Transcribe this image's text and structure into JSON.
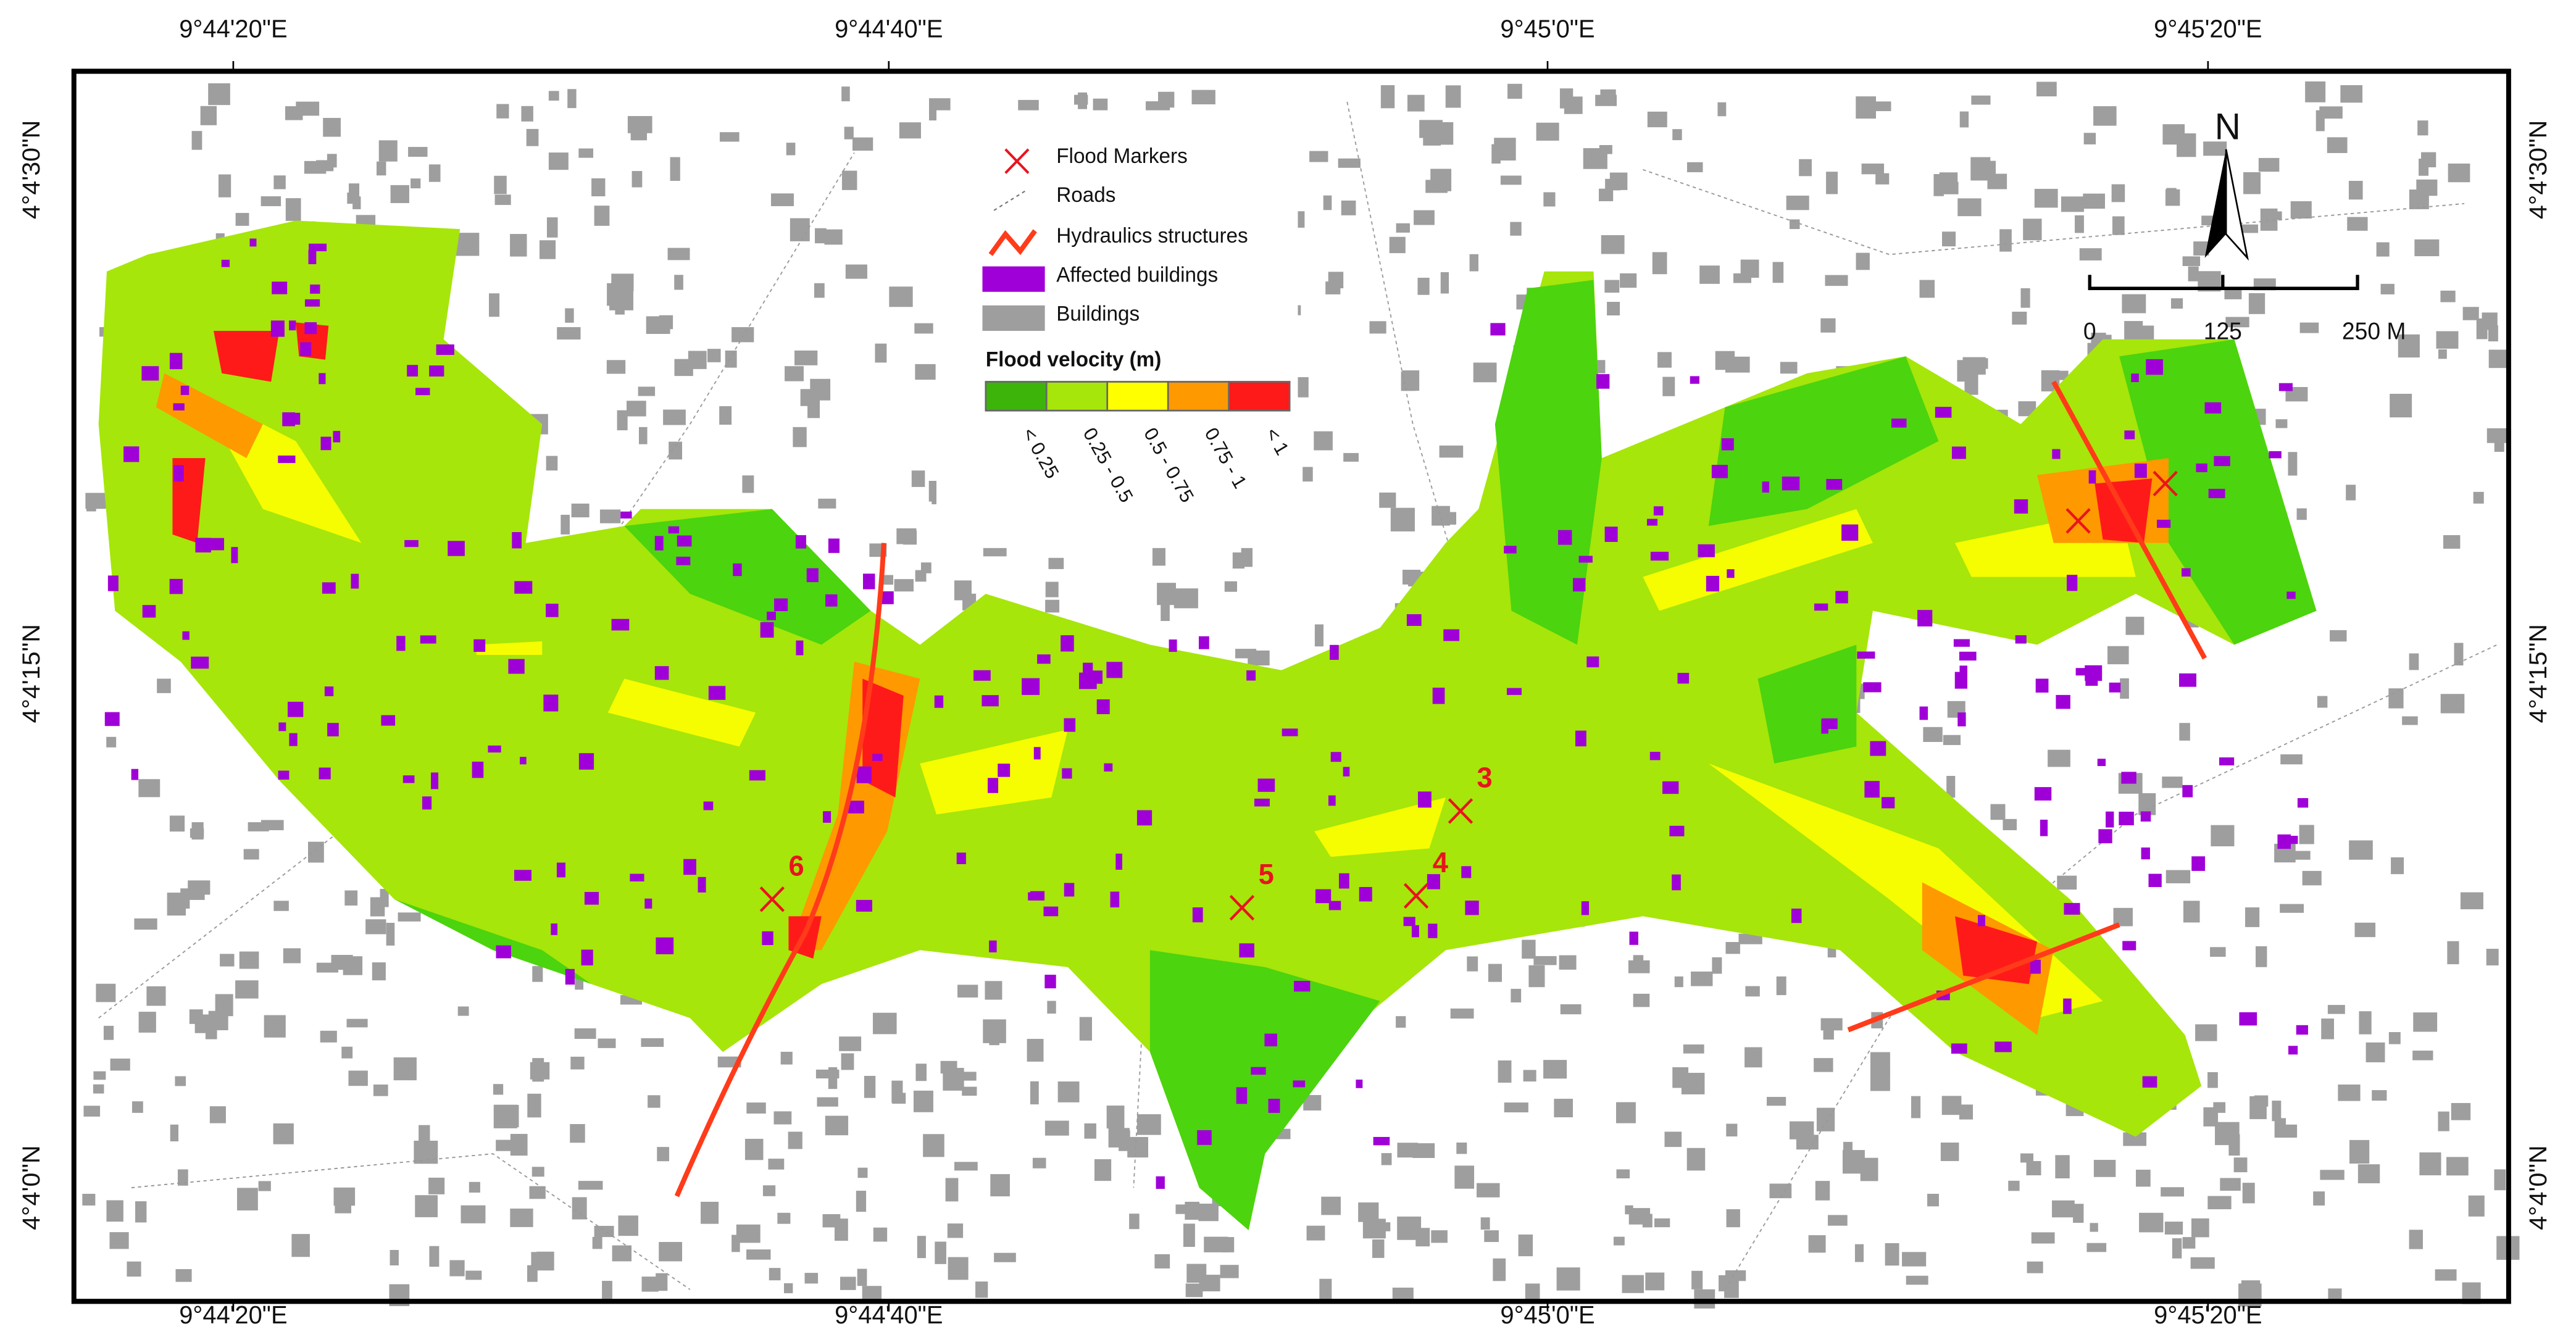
{
  "axes": {
    "top": [
      "9°44'20\"E",
      "9°44'40\"E",
      "9°45'0\"E",
      "9°45'20\"E"
    ],
    "bottom": [
      "9°44'20\"E",
      "9°44'40\"E",
      "9°45'0\"E",
      "9°45'20\"E"
    ],
    "left": [
      "4°4'30\"N",
      "4°4'15\"N",
      "4°4'0\"N"
    ],
    "right": [
      "4°4'30\"N",
      "4°4'15\"N",
      "4°4'0\"N"
    ]
  },
  "legend": {
    "items": [
      "Flood Markers",
      "Roads",
      "Hydraulics structures",
      "Affected buildings",
      "Buildings"
    ],
    "velocity_title": "Flood velocity (m)",
    "classes": [
      {
        "label": "< 0.25",
        "color": "#3cb40a"
      },
      {
        "label": "0.25 - 0.5",
        "color": "#a6e60a"
      },
      {
        "label": "0.5 - 0.75",
        "color": "#ffff00"
      },
      {
        "label": "0.75 - 1",
        "color": "#ff9900"
      },
      {
        "label": "< 1",
        "color": "#ff1a1a"
      }
    ]
  },
  "north": "N",
  "scale": [
    "0",
    "125",
    "250 M"
  ],
  "markers": [
    "3",
    "4",
    "5",
    "6"
  ]
}
